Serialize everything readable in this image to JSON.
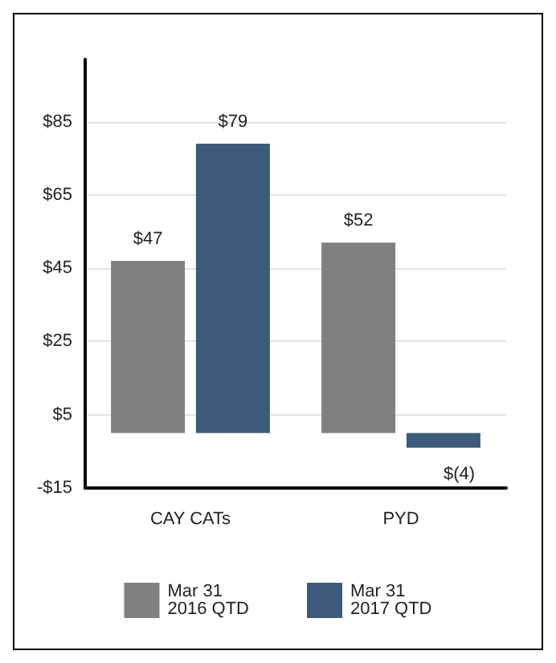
{
  "chart_data": {
    "type": "bar",
    "categories": [
      "CAY CATs",
      "PYD"
    ],
    "series": [
      {
        "name": "Mar 31\n2016 QTD",
        "color": "#808080",
        "values": [
          47,
          52
        ],
        "value_labels": [
          "$47",
          "$52"
        ]
      },
      {
        "name": "Mar 31\n2017 QTD",
        "color": "#3d5a7a",
        "values": [
          79,
          -4
        ],
        "value_labels": [
          "$79",
          "$(4)"
        ]
      }
    ],
    "ylim": [
      -15,
      102
    ],
    "yticks": [
      {
        "value": -15,
        "label": "-$15"
      },
      {
        "value": 5,
        "label": "$5"
      },
      {
        "value": 25,
        "label": "$25"
      },
      {
        "value": 45,
        "label": "$45"
      },
      {
        "value": 65,
        "label": "$65"
      },
      {
        "value": 85,
        "label": "$85"
      }
    ],
    "grid": "y",
    "legend": "bottom"
  }
}
